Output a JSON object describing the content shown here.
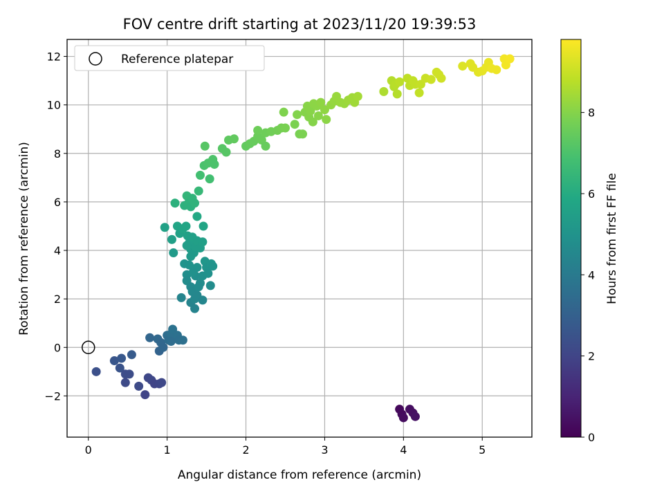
{
  "chart_data": {
    "type": "scatter",
    "title": "FOV centre drift starting at 2023/11/20 19:39:53",
    "xlabel": "Angular distance from reference (arcmin)",
    "ylabel": "Rotation from reference (arcmin)",
    "xlim": [
      -0.27,
      5.63
    ],
    "ylim": [
      -3.7,
      12.7
    ],
    "xticks": [
      0,
      1,
      2,
      3,
      4,
      5
    ],
    "yticks": [
      -2,
      0,
      2,
      4,
      6,
      8,
      10,
      12
    ],
    "ytick_labels": [
      "−2",
      "0",
      "2",
      "4",
      "6",
      "8",
      "10",
      "12"
    ],
    "grid": true,
    "legend": {
      "placement": "upper-left",
      "entries": [
        "Reference platepar"
      ]
    },
    "reference_point": {
      "x": 0,
      "y": 0
    },
    "colorbar": {
      "label": "Hours from first FF file",
      "colormap": "viridis",
      "range": [
        0,
        9.8
      ],
      "ticks": [
        0,
        2,
        4,
        6,
        8
      ]
    },
    "points": [
      {
        "x": 3.95,
        "y": -2.55,
        "t": 0.2
      },
      {
        "x": 3.98,
        "y": -2.75,
        "t": 0.25
      },
      {
        "x": 4.0,
        "y": -2.9,
        "t": 0.3
      },
      {
        "x": 4.08,
        "y": -2.55,
        "t": 0.35
      },
      {
        "x": 4.12,
        "y": -2.7,
        "t": 0.4
      },
      {
        "x": 4.15,
        "y": -2.85,
        "t": 0.45
      },
      {
        "x": 0.1,
        "y": -1.0,
        "t": 2.4
      },
      {
        "x": 0.33,
        "y": -0.55,
        "t": 2.6
      },
      {
        "x": 0.42,
        "y": -0.45,
        "t": 2.7
      },
      {
        "x": 0.4,
        "y": -0.85,
        "t": 2.5
      },
      {
        "x": 0.47,
        "y": -1.1,
        "t": 2.3
      },
      {
        "x": 0.47,
        "y": -1.45,
        "t": 2.2
      },
      {
        "x": 0.52,
        "y": -1.1,
        "t": 2.3
      },
      {
        "x": 0.55,
        "y": -0.3,
        "t": 2.8
      },
      {
        "x": 0.64,
        "y": -1.6,
        "t": 2.2
      },
      {
        "x": 0.72,
        "y": -1.95,
        "t": 2.0
      },
      {
        "x": 0.76,
        "y": -1.25,
        "t": 2.1
      },
      {
        "x": 0.8,
        "y": -1.35,
        "t": 2.1
      },
      {
        "x": 0.84,
        "y": -1.5,
        "t": 2.0
      },
      {
        "x": 0.9,
        "y": -1.5,
        "t": 2.05
      },
      {
        "x": 0.93,
        "y": -1.45,
        "t": 2.1
      },
      {
        "x": 0.78,
        "y": 0.4,
        "t": 3.2
      },
      {
        "x": 0.88,
        "y": 0.35,
        "t": 3.3
      },
      {
        "x": 0.92,
        "y": 0.2,
        "t": 3.25
      },
      {
        "x": 0.9,
        "y": -0.15,
        "t": 3.1
      },
      {
        "x": 0.95,
        "y": 0.0,
        "t": 3.2
      },
      {
        "x": 1.0,
        "y": 0.5,
        "t": 3.5
      },
      {
        "x": 1.02,
        "y": 0.3,
        "t": 3.45
      },
      {
        "x": 1.05,
        "y": 0.55,
        "t": 3.6
      },
      {
        "x": 1.07,
        "y": 0.75,
        "t": 3.7
      },
      {
        "x": 1.1,
        "y": 0.4,
        "t": 3.6
      },
      {
        "x": 1.13,
        "y": 0.5,
        "t": 3.65
      },
      {
        "x": 1.15,
        "y": 0.3,
        "t": 3.55
      },
      {
        "x": 1.05,
        "y": 0.25,
        "t": 3.5
      },
      {
        "x": 1.2,
        "y": 0.3,
        "t": 3.6
      },
      {
        "x": 1.18,
        "y": 2.05,
        "t": 4.4
      },
      {
        "x": 1.22,
        "y": 3.45,
        "t": 5.0
      },
      {
        "x": 1.25,
        "y": 3.0,
        "t": 4.8
      },
      {
        "x": 1.25,
        "y": 2.75,
        "t": 4.7
      },
      {
        "x": 1.28,
        "y": 3.4,
        "t": 5.0
      },
      {
        "x": 1.3,
        "y": 2.5,
        "t": 4.6
      },
      {
        "x": 1.3,
        "y": 1.85,
        "t": 4.4
      },
      {
        "x": 1.32,
        "y": 2.3,
        "t": 4.55
      },
      {
        "x": 1.35,
        "y": 1.6,
        "t": 4.35
      },
      {
        "x": 1.35,
        "y": 2.0,
        "t": 4.5
      },
      {
        "x": 1.36,
        "y": 2.95,
        "t": 4.8
      },
      {
        "x": 1.38,
        "y": 2.15,
        "t": 4.5
      },
      {
        "x": 1.38,
        "y": 3.3,
        "t": 5.0
      },
      {
        "x": 1.42,
        "y": 2.65,
        "t": 4.7
      },
      {
        "x": 1.45,
        "y": 1.95,
        "t": 4.45
      },
      {
        "x": 1.45,
        "y": 2.95,
        "t": 4.85
      },
      {
        "x": 1.48,
        "y": 3.55,
        "t": 5.1
      },
      {
        "x": 1.5,
        "y": 3.3,
        "t": 5.0
      },
      {
        "x": 1.52,
        "y": 3.05,
        "t": 4.9
      },
      {
        "x": 1.55,
        "y": 2.55,
        "t": 4.7
      },
      {
        "x": 1.56,
        "y": 3.45,
        "t": 5.05
      },
      {
        "x": 1.58,
        "y": 3.35,
        "t": 5.0
      },
      {
        "x": 1.4,
        "y": 2.5,
        "t": 4.65
      },
      {
        "x": 1.33,
        "y": 3.1,
        "t": 4.9
      },
      {
        "x": 0.97,
        "y": 4.95,
        "t": 5.6
      },
      {
        "x": 1.06,
        "y": 4.45,
        "t": 5.5
      },
      {
        "x": 1.08,
        "y": 3.9,
        "t": 5.3
      },
      {
        "x": 1.13,
        "y": 5.0,
        "t": 5.7
      },
      {
        "x": 1.16,
        "y": 4.7,
        "t": 5.6
      },
      {
        "x": 1.2,
        "y": 4.9,
        "t": 5.7
      },
      {
        "x": 1.24,
        "y": 5.0,
        "t": 5.75
      },
      {
        "x": 1.26,
        "y": 4.6,
        "t": 5.6
      },
      {
        "x": 1.28,
        "y": 4.3,
        "t": 5.45
      },
      {
        "x": 1.3,
        "y": 4.05,
        "t": 5.35
      },
      {
        "x": 1.32,
        "y": 4.55,
        "t": 5.55
      },
      {
        "x": 1.34,
        "y": 3.9,
        "t": 5.3
      },
      {
        "x": 1.36,
        "y": 4.15,
        "t": 5.4
      },
      {
        "x": 1.38,
        "y": 4.4,
        "t": 5.5
      },
      {
        "x": 1.38,
        "y": 5.4,
        "t": 5.9
      },
      {
        "x": 1.42,
        "y": 4.1,
        "t": 5.4
      },
      {
        "x": 1.45,
        "y": 4.35,
        "t": 5.5
      },
      {
        "x": 1.46,
        "y": 5.0,
        "t": 5.75
      },
      {
        "x": 1.3,
        "y": 3.75,
        "t": 5.25
      },
      {
        "x": 1.25,
        "y": 4.2,
        "t": 5.4
      },
      {
        "x": 1.1,
        "y": 5.95,
        "t": 6.2
      },
      {
        "x": 1.22,
        "y": 5.85,
        "t": 6.2
      },
      {
        "x": 1.25,
        "y": 6.25,
        "t": 6.4
      },
      {
        "x": 1.27,
        "y": 5.95,
        "t": 6.25
      },
      {
        "x": 1.3,
        "y": 5.8,
        "t": 6.2
      },
      {
        "x": 1.32,
        "y": 6.15,
        "t": 6.35
      },
      {
        "x": 1.35,
        "y": 5.95,
        "t": 6.3
      },
      {
        "x": 1.4,
        "y": 6.45,
        "t": 6.5
      },
      {
        "x": 1.42,
        "y": 7.1,
        "t": 6.8
      },
      {
        "x": 1.47,
        "y": 7.5,
        "t": 6.95
      },
      {
        "x": 1.48,
        "y": 8.3,
        "t": 7.2
      },
      {
        "x": 1.52,
        "y": 7.6,
        "t": 7.0
      },
      {
        "x": 1.54,
        "y": 6.95,
        "t": 6.8
      },
      {
        "x": 1.58,
        "y": 7.75,
        "t": 7.05
      },
      {
        "x": 1.6,
        "y": 7.55,
        "t": 7.0
      },
      {
        "x": 1.7,
        "y": 8.2,
        "t": 7.2
      },
      {
        "x": 1.75,
        "y": 8.05,
        "t": 7.2
      },
      {
        "x": 1.78,
        "y": 8.55,
        "t": 7.35
      },
      {
        "x": 1.85,
        "y": 8.6,
        "t": 7.4
      },
      {
        "x": 2.0,
        "y": 8.3,
        "t": 7.4
      },
      {
        "x": 2.05,
        "y": 8.4,
        "t": 7.45
      },
      {
        "x": 2.1,
        "y": 8.5,
        "t": 7.5
      },
      {
        "x": 2.15,
        "y": 8.7,
        "t": 7.55
      },
      {
        "x": 2.15,
        "y": 8.95,
        "t": 7.6
      },
      {
        "x": 2.2,
        "y": 8.55,
        "t": 7.55
      },
      {
        "x": 2.25,
        "y": 8.3,
        "t": 7.5
      },
      {
        "x": 2.25,
        "y": 8.85,
        "t": 7.6
      },
      {
        "x": 2.32,
        "y": 8.9,
        "t": 7.65
      },
      {
        "x": 2.4,
        "y": 8.95,
        "t": 7.7
      },
      {
        "x": 2.45,
        "y": 9.05,
        "t": 7.75
      },
      {
        "x": 2.48,
        "y": 9.7,
        "t": 7.9
      },
      {
        "x": 2.5,
        "y": 9.05,
        "t": 7.8
      },
      {
        "x": 2.62,
        "y": 9.2,
        "t": 7.85
      },
      {
        "x": 2.65,
        "y": 9.6,
        "t": 7.95
      },
      {
        "x": 2.68,
        "y": 8.8,
        "t": 7.8
      },
      {
        "x": 2.72,
        "y": 8.8,
        "t": 7.85
      },
      {
        "x": 2.75,
        "y": 9.7,
        "t": 8.0
      },
      {
        "x": 2.78,
        "y": 9.95,
        "t": 8.05
      },
      {
        "x": 2.8,
        "y": 9.5,
        "t": 8.0
      },
      {
        "x": 2.82,
        "y": 9.75,
        "t": 8.05
      },
      {
        "x": 2.85,
        "y": 9.3,
        "t": 8.0
      },
      {
        "x": 2.86,
        "y": 10.05,
        "t": 8.1
      },
      {
        "x": 2.9,
        "y": 9.95,
        "t": 8.1
      },
      {
        "x": 2.92,
        "y": 9.55,
        "t": 8.05
      },
      {
        "x": 2.95,
        "y": 10.1,
        "t": 8.15
      },
      {
        "x": 3.0,
        "y": 9.8,
        "t": 8.15
      },
      {
        "x": 3.02,
        "y": 9.4,
        "t": 8.1
      },
      {
        "x": 3.08,
        "y": 10.0,
        "t": 8.2
      },
      {
        "x": 3.12,
        "y": 10.15,
        "t": 8.25
      },
      {
        "x": 3.15,
        "y": 10.35,
        "t": 8.3
      },
      {
        "x": 3.2,
        "y": 10.1,
        "t": 8.3
      },
      {
        "x": 3.25,
        "y": 10.05,
        "t": 8.3
      },
      {
        "x": 3.3,
        "y": 10.2,
        "t": 8.35
      },
      {
        "x": 3.35,
        "y": 10.3,
        "t": 8.4
      },
      {
        "x": 3.38,
        "y": 10.1,
        "t": 8.4
      },
      {
        "x": 3.42,
        "y": 10.35,
        "t": 8.45
      },
      {
        "x": 3.75,
        "y": 10.55,
        "t": 8.6
      },
      {
        "x": 3.85,
        "y": 11.0,
        "t": 8.7
      },
      {
        "x": 3.88,
        "y": 10.75,
        "t": 8.7
      },
      {
        "x": 3.9,
        "y": 10.85,
        "t": 8.75
      },
      {
        "x": 3.92,
        "y": 10.45,
        "t": 8.7
      },
      {
        "x": 3.95,
        "y": 10.95,
        "t": 8.8
      },
      {
        "x": 4.05,
        "y": 11.1,
        "t": 8.85
      },
      {
        "x": 4.08,
        "y": 10.8,
        "t": 8.85
      },
      {
        "x": 4.12,
        "y": 11.0,
        "t": 8.9
      },
      {
        "x": 4.15,
        "y": 10.85,
        "t": 8.9
      },
      {
        "x": 4.2,
        "y": 10.5,
        "t": 8.9
      },
      {
        "x": 4.22,
        "y": 10.85,
        "t": 8.95
      },
      {
        "x": 4.28,
        "y": 11.1,
        "t": 9.0
      },
      {
        "x": 4.35,
        "y": 11.05,
        "t": 9.05
      },
      {
        "x": 4.42,
        "y": 11.35,
        "t": 9.1
      },
      {
        "x": 4.45,
        "y": 11.25,
        "t": 9.1
      },
      {
        "x": 4.48,
        "y": 11.1,
        "t": 9.1
      },
      {
        "x": 4.75,
        "y": 11.6,
        "t": 9.3
      },
      {
        "x": 4.85,
        "y": 11.7,
        "t": 9.35
      },
      {
        "x": 4.88,
        "y": 11.55,
        "t": 9.35
      },
      {
        "x": 4.95,
        "y": 11.35,
        "t": 9.4
      },
      {
        "x": 5.0,
        "y": 11.4,
        "t": 9.45
      },
      {
        "x": 5.05,
        "y": 11.55,
        "t": 9.5
      },
      {
        "x": 5.08,
        "y": 11.75,
        "t": 9.5
      },
      {
        "x": 5.12,
        "y": 11.5,
        "t": 9.55
      },
      {
        "x": 5.18,
        "y": 11.45,
        "t": 9.55
      },
      {
        "x": 5.28,
        "y": 11.9,
        "t": 9.65
      },
      {
        "x": 5.3,
        "y": 11.65,
        "t": 9.65
      },
      {
        "x": 5.35,
        "y": 11.9,
        "t": 9.7
      }
    ]
  }
}
